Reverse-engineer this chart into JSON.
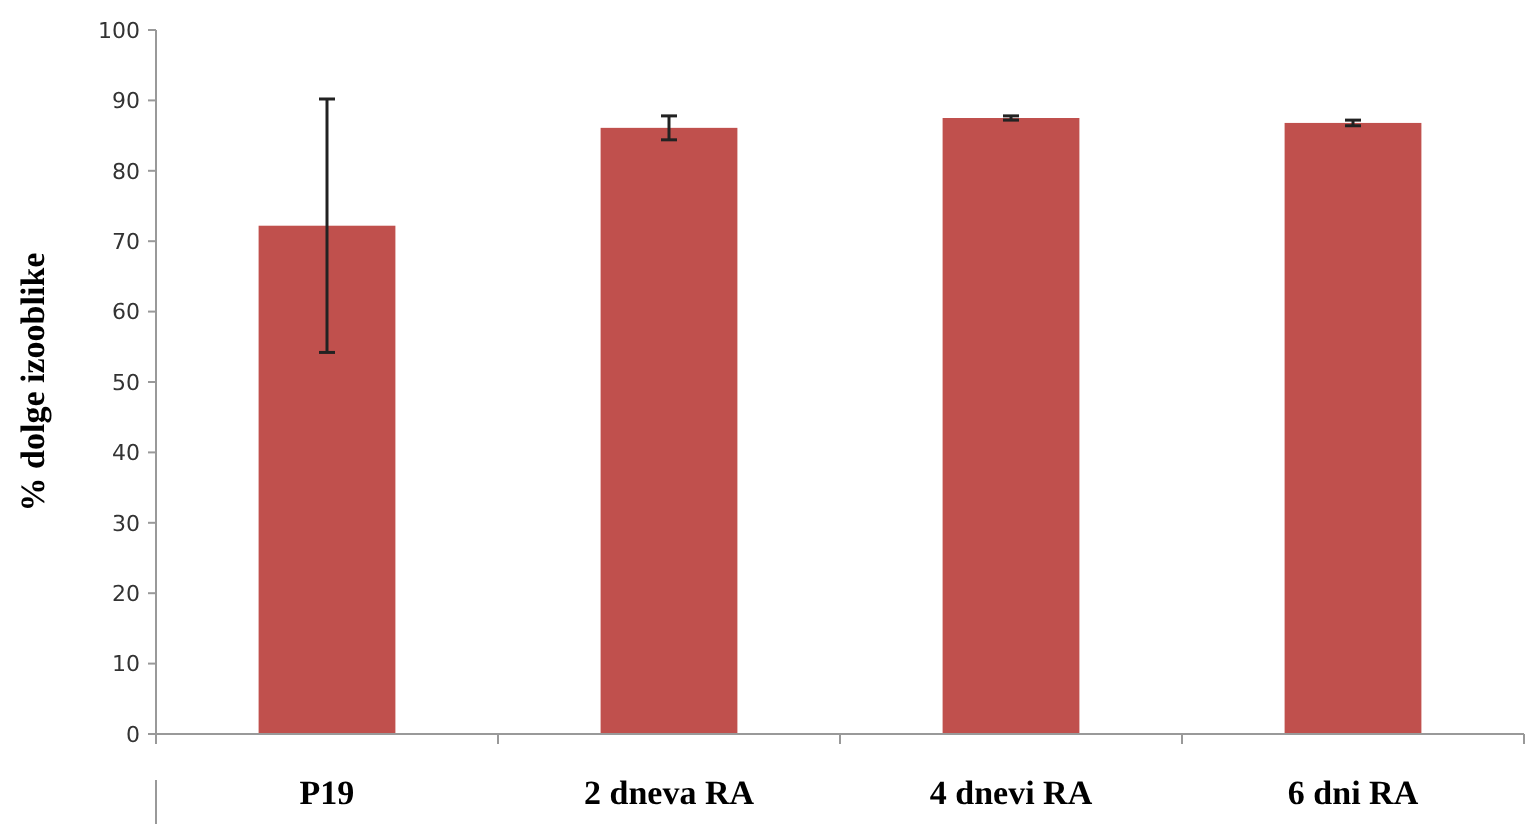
{
  "chart_data": {
    "type": "bar",
    "ylabel": "% dolge izooblike",
    "categories": [
      "P19",
      "2 dneva RA",
      "4 dnevi RA",
      "6 dni RA"
    ],
    "values": [
      72.2,
      86.1,
      87.5,
      86.8
    ],
    "errors": [
      18,
      1.7,
      0.3,
      0.4
    ],
    "color": "#c0504d",
    "ylim": [
      0,
      100
    ],
    "yticks": [
      0,
      10,
      20,
      30,
      40,
      50,
      60,
      70,
      80,
      90,
      100
    ],
    "grid": false
  }
}
